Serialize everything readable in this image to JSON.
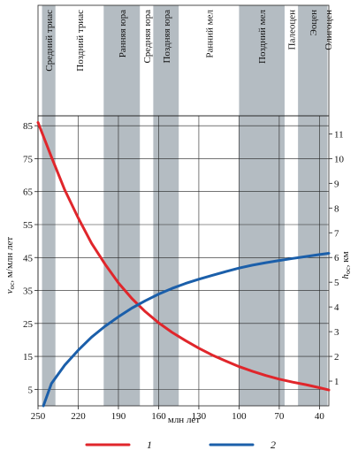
{
  "chart_data": {
    "type": "line",
    "xlabel": "млн лет",
    "ylabel_left": "v",
    "ylabel_left_sub": "ос",
    "ylabel_left_rest": ", м/млн лет",
    "ylabel_right": "h",
    "ylabel_right_sub": "ос",
    "ylabel_right_rest": ", км",
    "x_range": [
      250,
      33
    ],
    "x_ticks": [
      "250",
      "220",
      "190",
      "160",
      "130",
      "100",
      "70",
      "40"
    ],
    "x_tick_values": [
      250,
      220,
      190,
      160,
      130,
      100,
      70,
      40
    ],
    "y_left_range": [
      0,
      88
    ],
    "y_left_ticks": [
      "5",
      "15",
      "25",
      "35",
      "45",
      "55",
      "65",
      "75",
      "85"
    ],
    "y_left_tick_values": [
      5,
      15,
      25,
      35,
      45,
      55,
      65,
      75,
      85
    ],
    "y_right_range": [
      0,
      11.73
    ],
    "y_right_ticks": [
      "1",
      "2",
      "3",
      "4",
      "5",
      "6",
      "7",
      "8",
      "9",
      "10",
      "11"
    ],
    "y_right_tick_values": [
      1,
      2,
      3,
      4,
      5,
      6,
      7,
      8,
      9,
      10,
      11
    ],
    "grid": true,
    "periods": [
      {
        "label": "Средний триас",
        "from": 247,
        "to": 237,
        "shaded": true
      },
      {
        "label": "Поздний триас",
        "from": 237,
        "to": 201,
        "shaded": false
      },
      {
        "label": "Ранняя юра",
        "from": 201,
        "to": 174,
        "shaded": true
      },
      {
        "label": "Средняя юра",
        "from": 174,
        "to": 164,
        "shaded": false
      },
      {
        "label": "Поздняя юра",
        "from": 164,
        "to": 145,
        "shaded": true
      },
      {
        "label": "Ранний мел",
        "from": 145,
        "to": 100,
        "shaded": false
      },
      {
        "label": "Поздний мел",
        "from": 100,
        "to": 66,
        "shaded": true
      },
      {
        "label": "Палеоцен",
        "from": 66,
        "to": 56,
        "shaded": false
      },
      {
        "label": "Эоцен",
        "from": 56,
        "to": 34,
        "shaded": true
      },
      {
        "label": "Олигоцен",
        "from": 34,
        "to": 23,
        "shaded": false
      }
    ],
    "series": [
      {
        "name": "1",
        "axis": "left",
        "color": "#e0262b",
        "x": [
          250,
          240,
          230,
          220,
          210,
          200,
          190,
          180,
          170,
          160,
          150,
          140,
          130,
          120,
          110,
          100,
          90,
          80,
          70,
          60,
          50,
          40,
          33
        ],
        "y": [
          86,
          75.5,
          65.5,
          57,
          49.3,
          43,
          37.3,
          32.6,
          28.6,
          25.2,
          22.3,
          19.8,
          17.5,
          15.4,
          13.6,
          11.9,
          10.5,
          9.2,
          8.1,
          7.2,
          6.4,
          5.5,
          4.8
        ]
      },
      {
        "name": "2",
        "axis": "right",
        "color": "#1b5faa",
        "x": [
          246,
          240,
          230,
          220,
          210,
          200,
          190,
          180,
          170,
          160,
          150,
          140,
          130,
          120,
          110,
          100,
          90,
          80,
          70,
          60,
          50,
          40,
          33
        ],
        "y": [
          0,
          0.9,
          1.65,
          2.25,
          2.78,
          3.22,
          3.6,
          3.95,
          4.25,
          4.52,
          4.75,
          4.95,
          5.12,
          5.28,
          5.43,
          5.57,
          5.69,
          5.79,
          5.88,
          5.96,
          6.04,
          6.12,
          6.17
        ]
      }
    ],
    "legend": [
      {
        "label": "1",
        "color": "#e0262b"
      },
      {
        "label": "2",
        "color": "#1b5faa"
      }
    ]
  }
}
